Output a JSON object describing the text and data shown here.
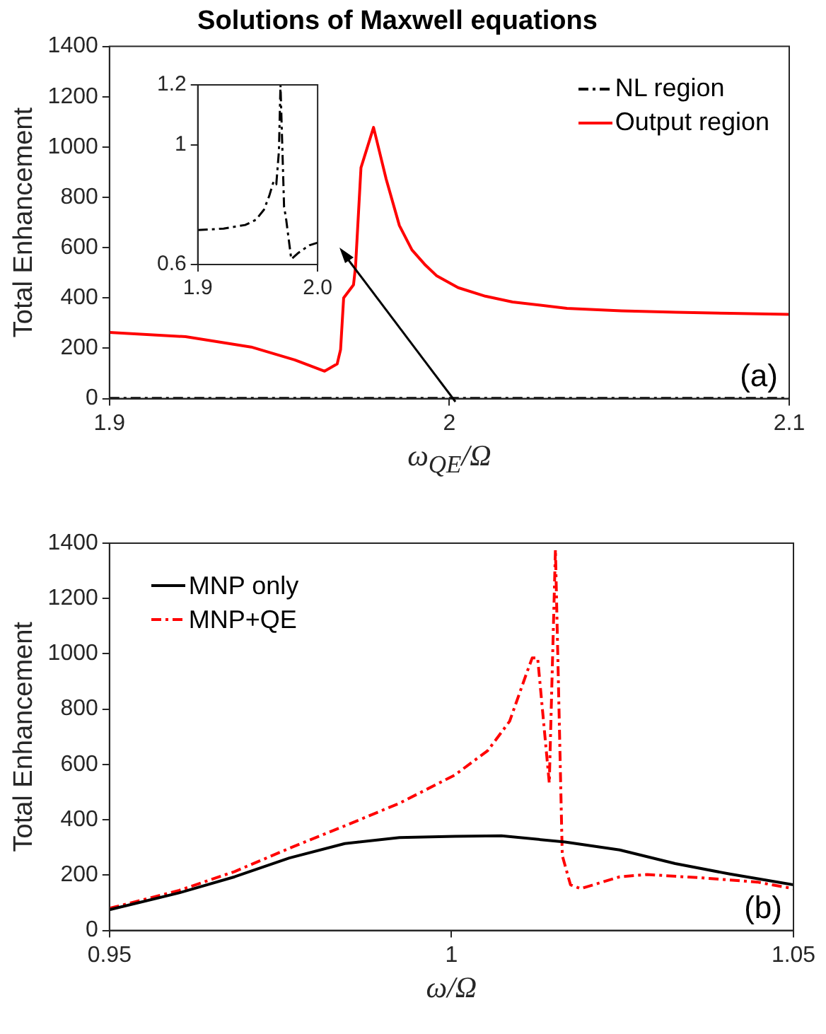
{
  "chart_data": [
    {
      "type": "line",
      "title": "Solutions of Maxwell equations",
      "xlabel": "ω$_{QE}$/Ω",
      "ylabel": "Total Enhancement",
      "xlim": [
        1.9,
        2.1
      ],
      "xticks": [
        1.9,
        2,
        2.1
      ],
      "ylim": [
        0,
        1400
      ],
      "yticks": [
        0,
        200,
        400,
        600,
        800,
        1000,
        1200,
        1400
      ],
      "legend": "top right",
      "marker": "none",
      "annotations": [
        "(a)"
      ],
      "series": [
        {
          "name": "NL region",
          "color": "#000000",
          "line_style": "dashed",
          "x": [
            1.9,
            2.0,
            2.1
          ],
          "values": [
            1,
            1,
            1
          ]
        },
        {
          "name": "Output region",
          "color": "#ff0000",
          "line_style": "solid",
          "x": [
            1.9,
            1.9224,
            1.9417,
            1.9545,
            1.9633,
            1.967,
            1.968,
            1.9689,
            1.9718,
            1.9724,
            1.974,
            1.9777,
            1.9814,
            1.9853,
            1.989,
            1.993,
            1.9962,
            2.0026,
            2.0106,
            2.0186,
            2.0346,
            2.0506,
            2.0667,
            2.0827,
            2.1
          ],
          "values": [
            263,
            246,
            205,
            154,
            109,
            138,
            195,
            400,
            452,
            524,
            918,
            1078,
            873,
            688,
            591,
            530,
            489,
            441,
            407,
            384,
            359,
            349,
            343,
            339,
            335
          ]
        }
      ]
    },
    {
      "type": "line",
      "xlim": [
        1.9,
        2.0
      ],
      "xticks": [
        1.9,
        {
          "value": 2.0,
          "label": "2.0"
        }
      ],
      "ylim": [
        0.6,
        1.2
      ],
      "yticks": [
        0.6,
        1,
        1.2
      ],
      "marker": "none",
      "series": [
        {
          "color": "#000000",
          "line_style": "dashed",
          "x": [
            1.9,
            1.9215,
            1.9395,
            1.9484,
            1.9552,
            1.9596,
            1.9632,
            1.9655,
            1.9677,
            1.969,
            1.972,
            1.9735,
            1.978,
            1.984,
            1.993,
            2.0
          ],
          "values": [
            0.715,
            0.72,
            0.732,
            0.749,
            0.783,
            0.829,
            0.877,
            0.868,
            0.979,
            1.2,
            0.792,
            0.758,
            0.618,
            0.639,
            0.664,
            0.673
          ]
        }
      ]
    },
    {
      "type": "line",
      "xlabel": "ω/Ω",
      "ylabel": "Total Enhancement",
      "xlim": [
        0.95,
        1.05
      ],
      "xticks": [
        0.95,
        1,
        1.05
      ],
      "ylim": [
        0,
        1400
      ],
      "yticks": [
        0,
        200,
        400,
        600,
        800,
        1000,
        1200,
        1400
      ],
      "legend": "top left",
      "marker": "none",
      "annotations": [
        "(b)"
      ],
      "series": [
        {
          "name": "MNP only",
          "color": "#000000",
          "line_style": "solid",
          "x": [
            0.95,
            0.9602,
            0.9683,
            0.9763,
            0.9844,
            0.9924,
            1.0005,
            1.0073,
            1.0166,
            1.0246,
            1.0327,
            1.0407,
            1.05
          ],
          "values": [
            75,
            136,
            194,
            262,
            314,
            336,
            340,
            342,
            320,
            291,
            242,
            204,
            165
          ]
        },
        {
          "name": "MNP+QE",
          "color": "#ff0000",
          "line_style": "dashed",
          "x": [
            0.95,
            0.9602,
            0.9683,
            0.9763,
            0.9844,
            0.9924,
            1.0005,
            1.0053,
            1.0085,
            1.011,
            1.0118,
            1.0126,
            1.0143,
            1.0152,
            1.0162,
            1.0174,
            1.0189,
            1.0246,
            1.0286,
            1.0367,
            1.0447,
            1.05
          ],
          "values": [
            80,
            145,
            213,
            297,
            378,
            460,
            562,
            650,
            756,
            931,
            985,
            985,
            533,
            1377,
            271,
            165,
            151,
            194,
            202,
            190,
            175,
            151
          ]
        }
      ]
    }
  ]
}
